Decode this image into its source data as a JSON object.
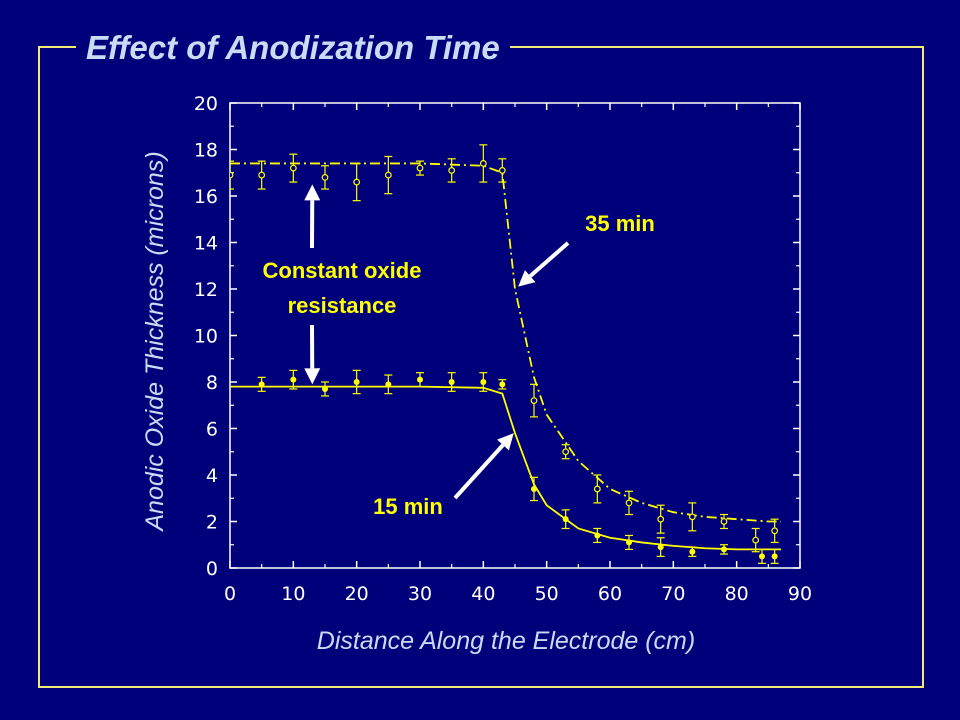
{
  "slide": {
    "title": "Effect of Anodization Time",
    "colors": {
      "background": "#00007a",
      "frame": "#f2ea78",
      "title": "#c8dcf4",
      "data": "#ffff00",
      "axes": "#ffffff"
    }
  },
  "chart_data": {
    "type": "line",
    "title": "",
    "xlabel": "Distance Along the Electrode (cm)",
    "ylabel": "Anodic Oxide Thickness (microns)",
    "xlim": [
      0,
      90
    ],
    "ylim": [
      0,
      20
    ],
    "xticks": [
      0,
      10,
      20,
      30,
      40,
      50,
      60,
      70,
      80,
      90
    ],
    "yticks": [
      0,
      2,
      4,
      6,
      8,
      10,
      12,
      14,
      16,
      18,
      20
    ],
    "grid": false,
    "legend": "none",
    "series": [
      {
        "name": "35 min",
        "marker": "open-circle",
        "fit_line": "dash-dot",
        "measured": {
          "x": [
            0,
            5,
            10,
            15,
            20,
            25,
            30,
            35,
            40,
            43,
            48,
            53,
            58,
            63,
            68,
            73,
            78,
            83,
            86
          ],
          "y": [
            16.9,
            16.9,
            17.2,
            16.8,
            16.6,
            16.9,
            17.2,
            17.1,
            17.4,
            17.1,
            7.2,
            5.0,
            3.4,
            2.8,
            2.1,
            2.2,
            2.0,
            1.2,
            1.6
          ],
          "err": [
            0.6,
            0.6,
            0.6,
            0.5,
            0.8,
            0.8,
            0.3,
            0.5,
            0.8,
            0.5,
            0.7,
            0.3,
            0.6,
            0.5,
            0.6,
            0.6,
            0.3,
            0.5,
            0.5
          ]
        },
        "fit": {
          "x": [
            0,
            10,
            20,
            30,
            40,
            43,
            45,
            48,
            50,
            55,
            60,
            65,
            70,
            75,
            80,
            85,
            87
          ],
          "y": [
            17.4,
            17.4,
            17.4,
            17.4,
            17.3,
            17.0,
            12.0,
            8.2,
            6.6,
            4.6,
            3.4,
            2.8,
            2.4,
            2.2,
            2.1,
            2.0,
            2.0
          ]
        }
      },
      {
        "name": "15 min",
        "marker": "filled-circle",
        "fit_line": "solid",
        "measured": {
          "x": [
            5,
            10,
            15,
            20,
            25,
            30,
            35,
            40,
            43,
            48,
            53,
            58,
            63,
            68,
            73,
            78,
            84,
            86
          ],
          "y": [
            7.9,
            8.1,
            7.7,
            8.0,
            7.9,
            8.1,
            8.0,
            8.0,
            7.9,
            3.4,
            2.1,
            1.4,
            1.1,
            0.9,
            0.7,
            0.8,
            0.5,
            0.5
          ],
          "err": [
            0.3,
            0.4,
            0.3,
            0.5,
            0.4,
            0.3,
            0.4,
            0.4,
            0.2,
            0.5,
            0.4,
            0.3,
            0.3,
            0.4,
            0.2,
            0.2,
            0.3,
            0.3
          ]
        },
        "fit": {
          "x": [
            0,
            10,
            20,
            30,
            40,
            43,
            45,
            48,
            50,
            55,
            60,
            65,
            70,
            75,
            80,
            87
          ],
          "y": [
            7.8,
            7.8,
            7.8,
            7.8,
            7.75,
            7.5,
            5.8,
            3.6,
            2.7,
            1.7,
            1.3,
            1.1,
            0.95,
            0.85,
            0.8,
            0.8
          ]
        }
      }
    ],
    "annotations": [
      {
        "text": "35 min",
        "arrow_to": [
          45.5,
          12.1
        ]
      },
      {
        "text": "15 min",
        "arrow_to": [
          44.8,
          5.8
        ]
      },
      {
        "text_lines": [
          "Constant oxide",
          "resistance"
        ],
        "arrows_to": [
          [
            13,
            16.5
          ],
          [
            13,
            7.9
          ]
        ]
      }
    ]
  }
}
